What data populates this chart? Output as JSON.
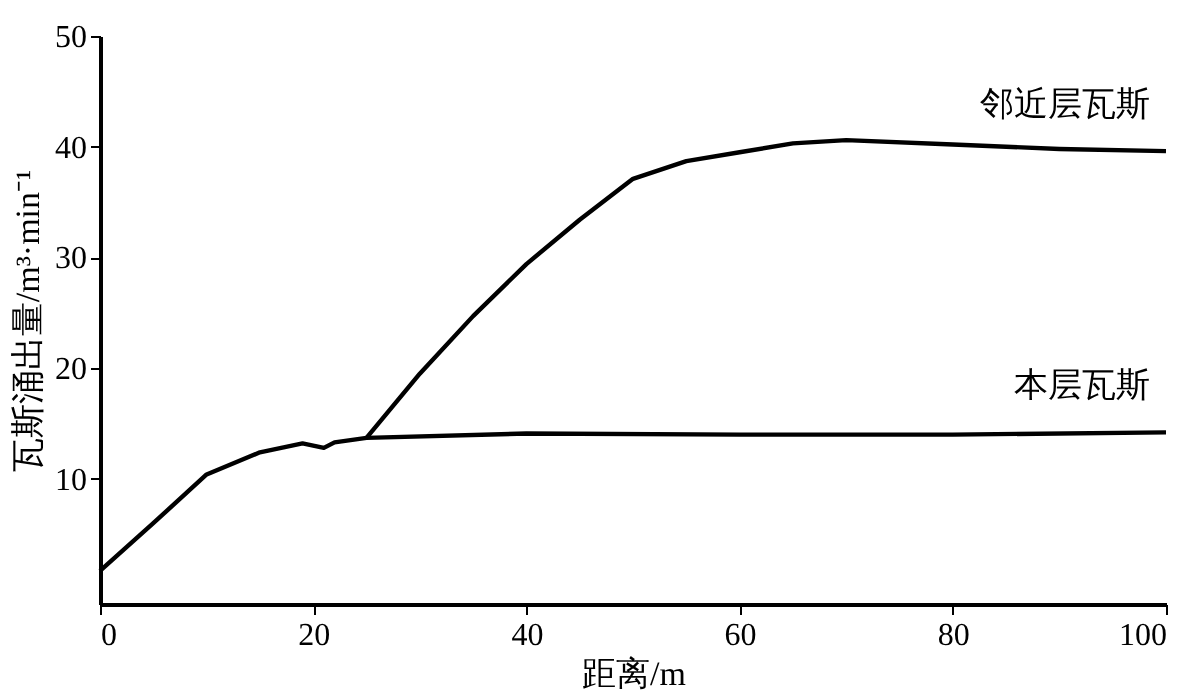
{
  "chart_data": {
    "type": "line",
    "xlabel": "距离/m",
    "ylabel": "瓦斯涌出量/m³·min⁻¹",
    "xlim": [
      0,
      100
    ],
    "xticks": [
      0,
      20,
      40,
      60,
      80,
      100
    ],
    "ylim": [
      -1.3,
      50
    ],
    "yticks": [
      10,
      20,
      30,
      40,
      50
    ],
    "grid": false,
    "legend": false,
    "marker": "none",
    "line_style": "solid",
    "series": [
      {
        "name": "本层瓦斯",
        "color": "#000000",
        "x": [
          0,
          5,
          10,
          15,
          19,
          21,
          22,
          25,
          40,
          60,
          80,
          100
        ],
        "values": [
          1.7,
          6,
          10.4,
          12.4,
          13.2,
          12.8,
          13.3,
          13.7,
          14.1,
          14,
          14,
          14.2
        ]
      },
      {
        "name": "邻近层瓦斯",
        "color": "#000000",
        "x": [
          25,
          30,
          35,
          40,
          45,
          50,
          55,
          60,
          65,
          70,
          80,
          90,
          100
        ],
        "values": [
          13.7,
          19.5,
          24.7,
          29.4,
          33.4,
          37.1,
          38.7,
          39.5,
          40.3,
          40.6,
          40.2,
          39.8,
          39.6
        ]
      }
    ]
  }
}
